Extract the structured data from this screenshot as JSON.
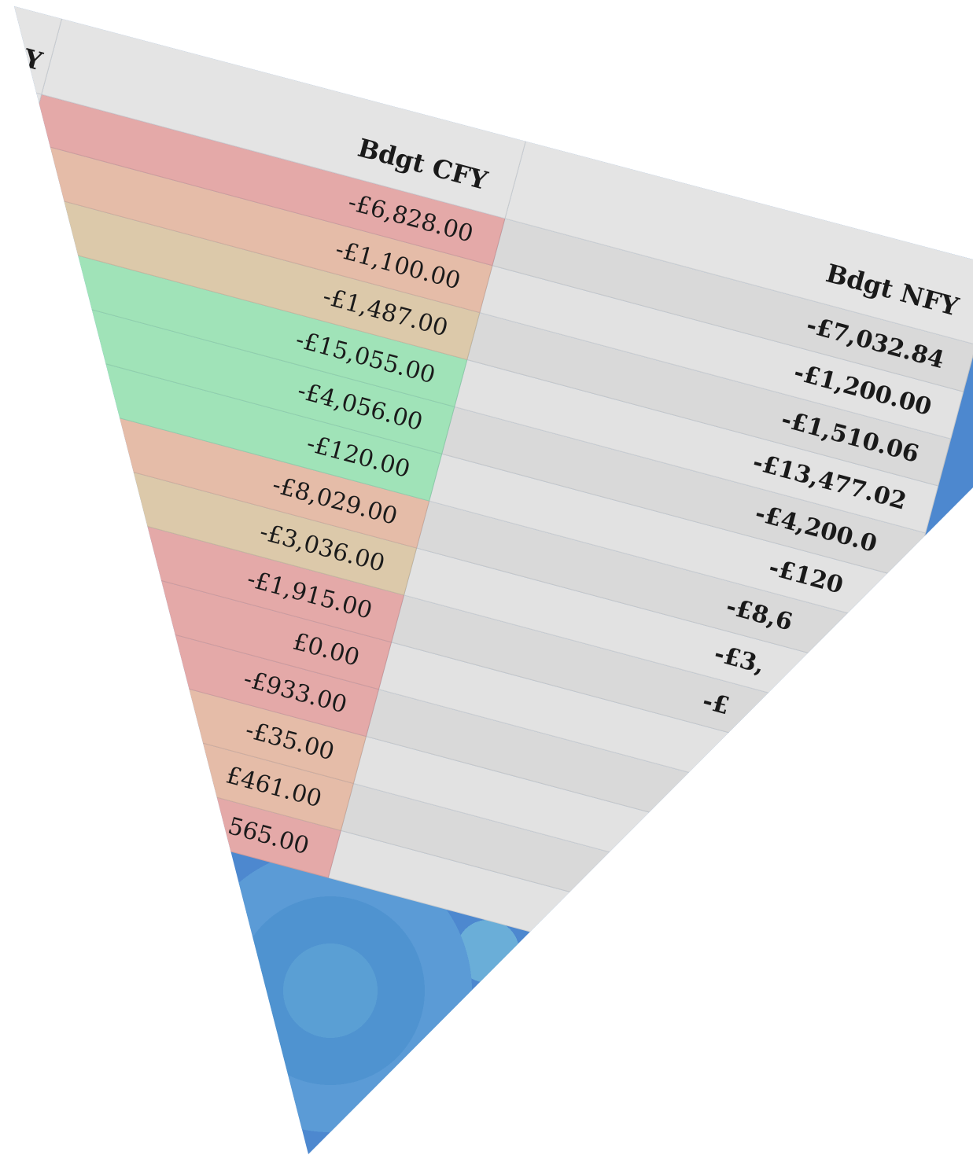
{
  "table": {
    "headers": [
      "Y",
      "Bdgt CFY",
      "Bdgt NFY"
    ],
    "rows": [
      [
        "-£6,828.00",
        "-£7,032.84"
      ],
      [
        "-£1,100.00",
        "-£1,200.00"
      ],
      [
        "-£1,487.00",
        "-£1,510.06"
      ],
      [
        "-£15,055.00",
        "-£13,477.02"
      ],
      [
        "-£4,056.00",
        "-£4,200.0"
      ],
      [
        "-£120.00",
        "-£120"
      ],
      [
        "-£8,029.00",
        "-£8,6"
      ],
      [
        "-£3,036.00",
        "-£3,"
      ],
      [
        "-£1,915.00",
        "-£"
      ],
      [
        "£0.00"
      ],
      [
        "-£933.00"
      ],
      [
        "-£35.00"
      ],
      [
        "£461.00"
      ],
      [
        "565.00"
      ]
    ]
  }
}
